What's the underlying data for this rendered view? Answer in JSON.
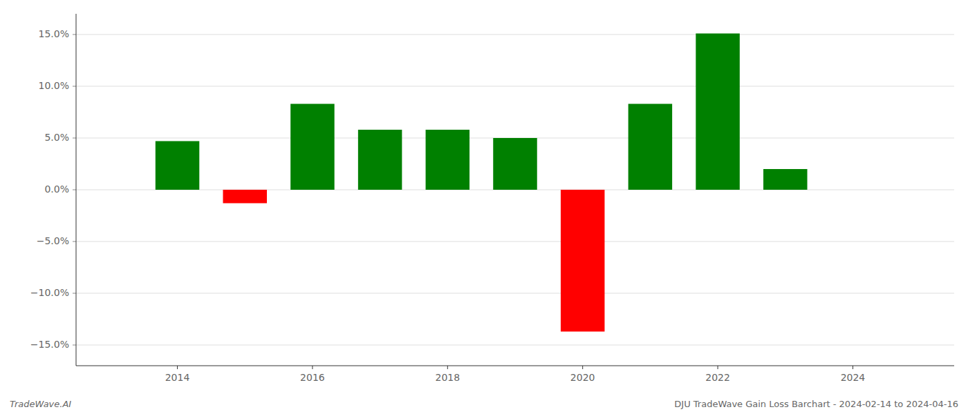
{
  "chart_data": {
    "type": "bar",
    "title": "DJU TradeWave Gain Loss Barchart - 2024-02-14 to 2024-04-16",
    "annotations": [
      "TradeWave.AI"
    ],
    "x": [
      2014,
      2015,
      2016,
      2017,
      2018,
      2019,
      2020,
      2021,
      2022,
      2023
    ],
    "values": [
      0.047,
      -0.013,
      0.083,
      0.058,
      0.058,
      0.05,
      -0.137,
      0.083,
      0.151,
      0.02
    ],
    "colors": [
      "#008000",
      "#ff0000",
      "#008000",
      "#008000",
      "#008000",
      "#008000",
      "#ff0000",
      "#008000",
      "#008000",
      "#008000"
    ],
    "xlim": [
      2012.5,
      2025.5
    ],
    "xticks": [
      2014,
      2016,
      2018,
      2020,
      2022,
      2024
    ],
    "ylim": [
      -0.17,
      0.17
    ],
    "yticks": [
      {
        "value": -0.15,
        "label": "−15.0%"
      },
      {
        "value": -0.1,
        "label": "−10.0%"
      },
      {
        "value": -0.05,
        "label": "−5.0%"
      },
      {
        "value": 0.0,
        "label": "0.0%"
      },
      {
        "value": 0.05,
        "label": "5.0%"
      },
      {
        "value": 0.1,
        "label": "10.0%"
      },
      {
        "value": 0.15,
        "label": "15.0%"
      }
    ],
    "grid": true
  }
}
